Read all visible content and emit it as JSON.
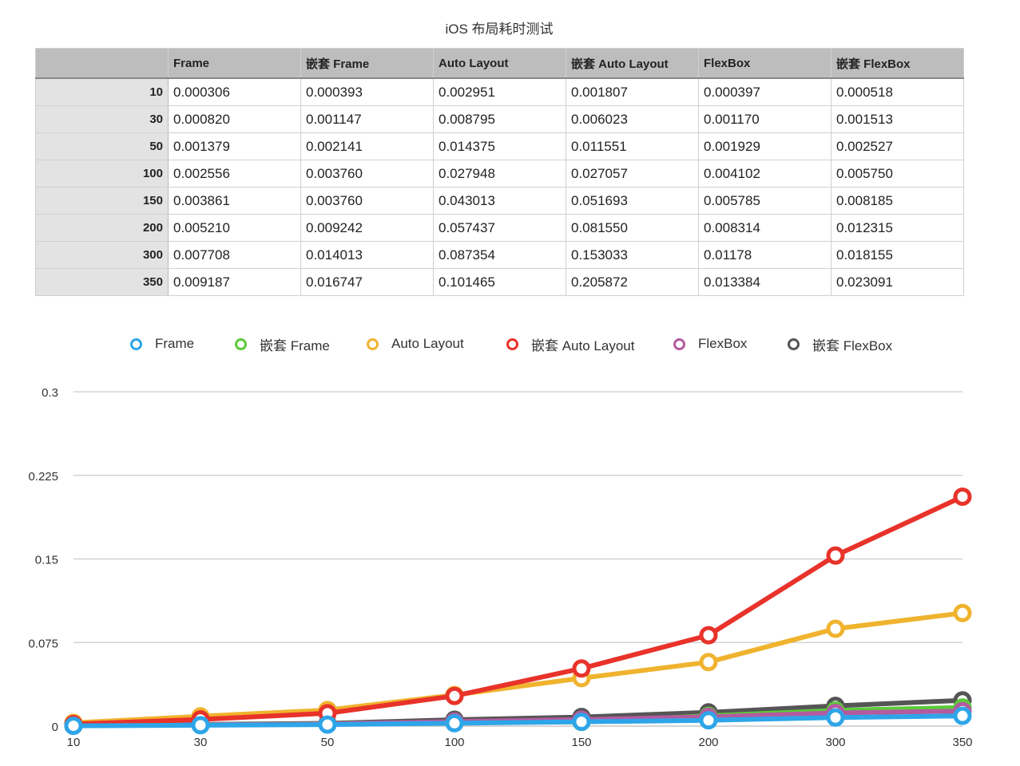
{
  "title": "iOS 布局耗时测试",
  "table": {
    "columns": [
      "Frame",
      "嵌套 Frame",
      "Auto Layout",
      "嵌套 Auto Layout",
      "FlexBox",
      "嵌套 FlexBox"
    ],
    "rows": [
      {
        "label": "10",
        "cells": [
          "0.000306",
          "0.000393",
          "0.002951",
          "0.001807",
          "0.000397",
          "0.000518"
        ]
      },
      {
        "label": "30",
        "cells": [
          "0.000820",
          "0.001147",
          "0.008795",
          "0.006023",
          "0.001170",
          "0.001513"
        ]
      },
      {
        "label": "50",
        "cells": [
          "0.001379",
          "0.002141",
          "0.014375",
          "0.011551",
          "0.001929",
          "0.002527"
        ]
      },
      {
        "label": "100",
        "cells": [
          "0.002556",
          "0.003760",
          "0.027948",
          "0.027057",
          "0.004102",
          "0.005750"
        ]
      },
      {
        "label": "150",
        "cells": [
          "0.003861",
          "0.003760",
          "0.043013",
          "0.051693",
          "0.005785",
          "0.008185"
        ]
      },
      {
        "label": "200",
        "cells": [
          "0.005210",
          "0.009242",
          "0.057437",
          "0.081550",
          "0.008314",
          "0.012315"
        ]
      },
      {
        "label": "300",
        "cells": [
          "0.007708",
          "0.014013",
          "0.087354",
          "0.153033",
          "0.01178",
          "0.018155"
        ]
      },
      {
        "label": "350",
        "cells": [
          "0.009187",
          "0.016747",
          "0.101465",
          "0.205872",
          "0.013384",
          "0.023091"
        ]
      }
    ]
  },
  "chart_data": {
    "type": "line",
    "title": "iOS 布局耗时测试",
    "xlabel": "",
    "ylabel": "",
    "categories": [
      "10",
      "30",
      "50",
      "100",
      "150",
      "200",
      "300",
      "350"
    ],
    "ylim": [
      0,
      0.3
    ],
    "yticks": [
      "0",
      "0.075",
      "0.15",
      "0.225",
      "0.3"
    ],
    "grid": true,
    "legend_position": "top",
    "series": [
      {
        "name": "嵌套 FlexBox",
        "color": "#555555",
        "values": [
          0.000518,
          0.001513,
          0.002527,
          0.00575,
          0.008185,
          0.012315,
          0.018155,
          0.023091
        ]
      },
      {
        "name": "嵌套 Frame",
        "color": "#5cc93a",
        "values": [
          0.000393,
          0.001147,
          0.002141,
          0.00376,
          0.00376,
          0.009242,
          0.014013,
          0.016747
        ]
      },
      {
        "name": "FlexBox",
        "color": "#b45ba0",
        "values": [
          0.000397,
          0.00117,
          0.001929,
          0.004102,
          0.005785,
          0.008314,
          0.01178,
          0.013384
        ]
      },
      {
        "name": "Auto Layout",
        "color": "#f0b32e",
        "values": [
          0.002951,
          0.008795,
          0.014375,
          0.027948,
          0.043013,
          0.057437,
          0.087354,
          0.101465
        ]
      },
      {
        "name": "嵌套 Auto Layout",
        "color": "#e8322a",
        "values": [
          0.001807,
          0.006023,
          0.011551,
          0.027057,
          0.051693,
          0.08155,
          0.153033,
          0.205872
        ]
      },
      {
        "name": "Frame",
        "color": "#2ea5e8",
        "values": [
          0.000306,
          0.00082,
          0.001379,
          0.002556,
          0.003861,
          0.00521,
          0.007708,
          0.009187
        ]
      }
    ]
  },
  "legend": [
    {
      "name": "Frame",
      "color": "#2ea5e8"
    },
    {
      "name": "嵌套 Frame",
      "color": "#5cc93a"
    },
    {
      "name": "Auto Layout",
      "color": "#f0b32e"
    },
    {
      "name": "嵌套 Auto Layout",
      "color": "#e8322a"
    },
    {
      "name": "FlexBox",
      "color": "#b45ba0"
    },
    {
      "name": "嵌套 FlexBox",
      "color": "#555555"
    }
  ]
}
